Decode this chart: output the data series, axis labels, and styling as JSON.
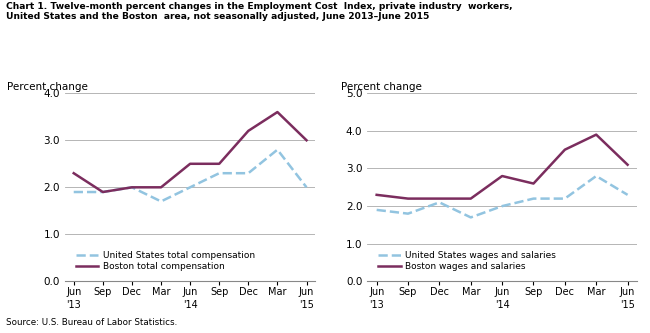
{
  "title_line1": "Chart 1. Twelve-month percent changes in the Employment Cost  Index, private industry  workers,",
  "title_line2": "United States and the Boston  area, not seasonally adjusted, June 2013–June 2015",
  "source": "Source: U.S. Bureau of Labor Statistics.",
  "x_labels": [
    "Jun",
    "Sep",
    "Dec",
    "Mar",
    "Jun",
    "Sep",
    "Dec",
    "Mar",
    "Jun"
  ],
  "x_labels_year": [
    "'13",
    "",
    "",
    "",
    "'14",
    "",
    "",
    "",
    "'15"
  ],
  "left": {
    "ylabel": "Percent change",
    "ylim": [
      0.0,
      4.0
    ],
    "yticks": [
      0.0,
      1.0,
      2.0,
      3.0,
      4.0
    ],
    "us_total_comp": [
      1.9,
      1.9,
      2.0,
      1.7,
      2.0,
      2.3,
      2.3,
      2.8,
      2.0
    ],
    "boston_total_comp": [
      2.3,
      1.9,
      2.0,
      2.0,
      2.5,
      2.5,
      3.2,
      3.6,
      3.0
    ],
    "legend1": "United States total compensation",
    "legend2": "Boston total compensation"
  },
  "right": {
    "ylabel": "Percent change",
    "ylim": [
      0.0,
      5.0
    ],
    "yticks": [
      0.0,
      1.0,
      2.0,
      3.0,
      4.0,
      5.0
    ],
    "us_wages_sal": [
      1.9,
      1.8,
      2.1,
      1.7,
      2.0,
      2.2,
      2.2,
      2.8,
      2.3
    ],
    "boston_wages_sal": [
      2.3,
      2.2,
      2.2,
      2.2,
      2.8,
      2.6,
      3.5,
      3.9,
      3.1
    ],
    "legend1": "United States wages and salaries",
    "legend2": "Boston wages and salaries"
  },
  "us_color": "#92c4e0",
  "boston_color": "#7b2d5e",
  "us_linestyle": "--",
  "boston_linestyle": "-",
  "linewidth": 1.8,
  "grid_color": "#aaaaaa",
  "background_color": "#ffffff"
}
